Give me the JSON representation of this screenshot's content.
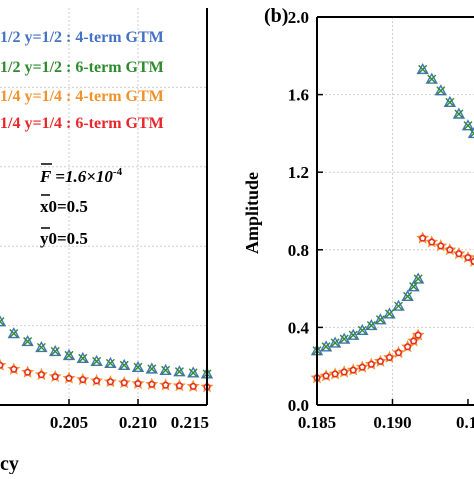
{
  "chart_data": [
    {
      "panel": "a",
      "type": "scatter",
      "xlabel_partial": "cy",
      "xticks": [
        "0.205",
        "0.210",
        "0.215"
      ],
      "xlim": [
        0.2,
        0.215
      ],
      "ylim": [
        0,
        2.0
      ],
      "legend": [
        {
          "text": "1/2 y=1/2 : 4-term GTM",
          "color": "#4472C4"
        },
        {
          "text": "1/2 y=1/2 : 6-term GTM",
          "color": "#2E8B2E"
        },
        {
          "text": "1/4 y=1/4 : 4-term GTM",
          "color": "#F0922B"
        },
        {
          "text": "1/4 y=1/4 : 6-term GTM",
          "color": "#E8262B"
        }
      ],
      "params": {
        "F": "F =1.6×10",
        "F_exp": "-4",
        "x0": "x0=0.5",
        "y0": "y0=0.5"
      },
      "series": [
        {
          "marker": "triangle",
          "color": "#4472C4",
          "x": [
            0.2,
            0.201,
            0.202,
            0.203,
            0.204,
            0.205,
            0.206,
            0.207,
            0.208,
            0.209,
            0.21,
            0.211,
            0.212,
            0.213,
            0.214,
            0.215
          ],
          "y": [
            0.42,
            0.36,
            0.32,
            0.29,
            0.27,
            0.25,
            0.235,
            0.22,
            0.21,
            0.2,
            0.19,
            0.182,
            0.175,
            0.168,
            0.162,
            0.157
          ]
        },
        {
          "marker": "x",
          "color": "#2E8B2E",
          "x": [
            0.2,
            0.201,
            0.202,
            0.203,
            0.204,
            0.205,
            0.206,
            0.207,
            0.208,
            0.209,
            0.21,
            0.211,
            0.212,
            0.213,
            0.214,
            0.215
          ],
          "y": [
            0.42,
            0.36,
            0.32,
            0.29,
            0.27,
            0.25,
            0.235,
            0.22,
            0.21,
            0.2,
            0.19,
            0.182,
            0.175,
            0.168,
            0.162,
            0.157
          ]
        },
        {
          "marker": "star",
          "color": "#F0922B",
          "x": [
            0.2,
            0.201,
            0.202,
            0.203,
            0.204,
            0.205,
            0.206,
            0.207,
            0.208,
            0.209,
            0.21,
            0.211,
            0.212,
            0.213,
            0.214,
            0.215
          ],
          "y": [
            0.2,
            0.18,
            0.165,
            0.153,
            0.143,
            0.135,
            0.128,
            0.122,
            0.117,
            0.112,
            0.108,
            0.104,
            0.1,
            0.097,
            0.094,
            0.091
          ]
        },
        {
          "marker": "circle",
          "color": "#E8262B",
          "x": [
            0.2,
            0.201,
            0.202,
            0.203,
            0.204,
            0.205,
            0.206,
            0.207,
            0.208,
            0.209,
            0.21,
            0.211,
            0.212,
            0.213,
            0.214,
            0.215
          ],
          "y": [
            0.2,
            0.18,
            0.165,
            0.153,
            0.143,
            0.135,
            0.128,
            0.122,
            0.117,
            0.112,
            0.108,
            0.104,
            0.1,
            0.097,
            0.094,
            0.091
          ]
        }
      ]
    },
    {
      "panel": "b",
      "type": "scatter",
      "panel_label": "(b)",
      "ylabel": "Amplitude",
      "xticks": [
        "0.185",
        "0.190",
        "0.1"
      ],
      "yticks": [
        "0.0",
        "0.4",
        "0.8",
        "1.2",
        "1.6",
        "2.0"
      ],
      "xlim": [
        0.185,
        0.1954
      ],
      "ylim": [
        0,
        2.0
      ],
      "series": [
        {
          "marker": "triangle",
          "color": "#4472C4",
          "x": [
            0.185,
            0.1856,
            0.1862,
            0.1868,
            0.1874,
            0.188,
            0.1886,
            0.1892,
            0.1898,
            0.1904,
            0.191,
            0.1914,
            0.1917,
            0.192,
            0.1926,
            0.1932,
            0.1938,
            0.1944,
            0.195,
            0.1954
          ],
          "y": [
            0.28,
            0.3,
            0.32,
            0.34,
            0.36,
            0.385,
            0.41,
            0.44,
            0.47,
            0.51,
            0.56,
            0.61,
            0.65,
            1.73,
            1.68,
            1.62,
            1.56,
            1.5,
            1.44,
            1.4
          ]
        },
        {
          "marker": "x",
          "color": "#2E8B2E",
          "x": [
            0.185,
            0.1856,
            0.1862,
            0.1868,
            0.1874,
            0.188,
            0.1886,
            0.1892,
            0.1898,
            0.1904,
            0.191,
            0.1914,
            0.1917,
            0.192,
            0.1926,
            0.1932,
            0.1938,
            0.1944,
            0.195,
            0.1954
          ],
          "y": [
            0.28,
            0.3,
            0.32,
            0.34,
            0.36,
            0.385,
            0.41,
            0.44,
            0.47,
            0.51,
            0.56,
            0.61,
            0.65,
            1.73,
            1.68,
            1.62,
            1.56,
            1.5,
            1.44,
            1.4
          ]
        },
        {
          "marker": "star",
          "color": "#F0922B",
          "x": [
            0.185,
            0.1856,
            0.1862,
            0.1868,
            0.1874,
            0.188,
            0.1886,
            0.1892,
            0.1898,
            0.1904,
            0.191,
            0.1914,
            0.1917,
            0.192,
            0.1926,
            0.1932,
            0.1938,
            0.1944,
            0.195,
            0.1954
          ],
          "y": [
            0.14,
            0.15,
            0.16,
            0.17,
            0.18,
            0.195,
            0.21,
            0.225,
            0.245,
            0.27,
            0.3,
            0.33,
            0.36,
            0.86,
            0.84,
            0.82,
            0.8,
            0.78,
            0.76,
            0.74
          ]
        },
        {
          "marker": "circle",
          "color": "#E8262B",
          "x": [
            0.185,
            0.1856,
            0.1862,
            0.1868,
            0.1874,
            0.188,
            0.1886,
            0.1892,
            0.1898,
            0.1904,
            0.191,
            0.1914,
            0.1917,
            0.192,
            0.1926,
            0.1932,
            0.1938,
            0.1944,
            0.195,
            0.1954
          ],
          "y": [
            0.14,
            0.15,
            0.16,
            0.17,
            0.18,
            0.195,
            0.21,
            0.225,
            0.245,
            0.27,
            0.3,
            0.33,
            0.36,
            0.86,
            0.84,
            0.82,
            0.8,
            0.78,
            0.76,
            0.74
          ]
        }
      ]
    }
  ]
}
